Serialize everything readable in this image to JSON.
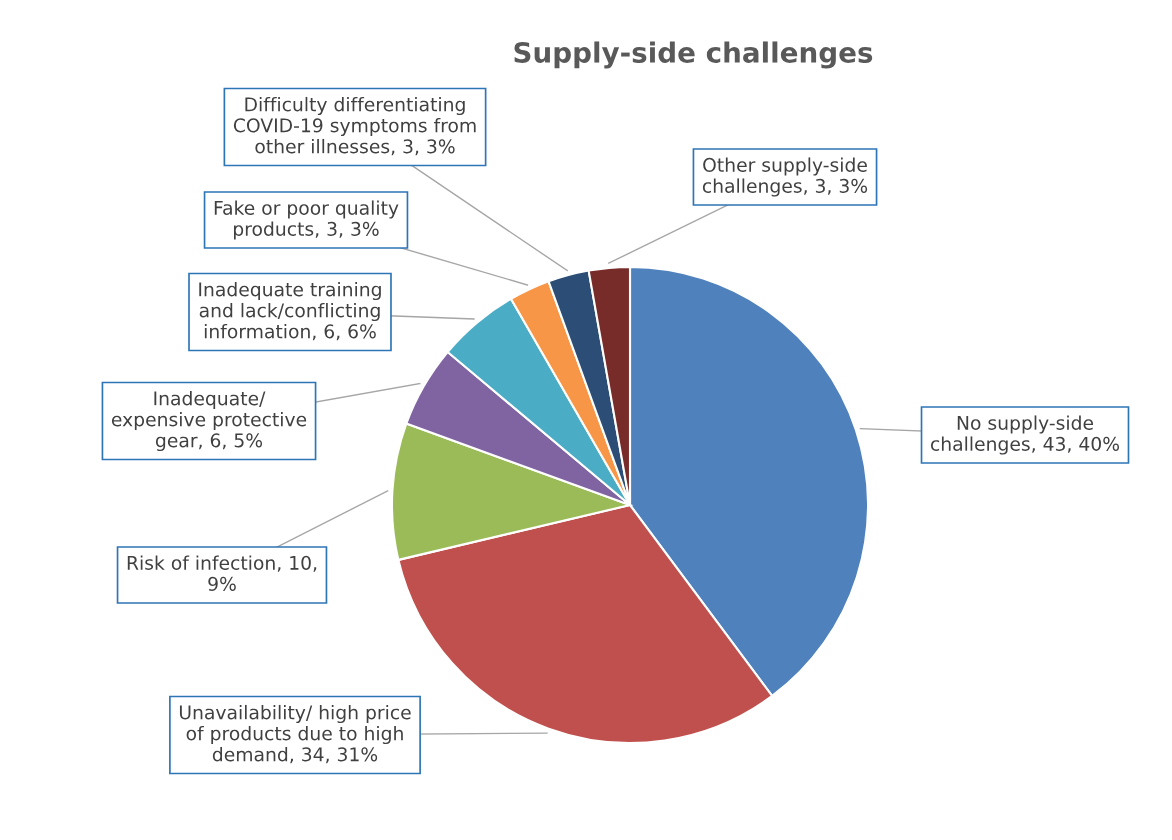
{
  "chart_data": {
    "type": "pie",
    "title": "Supply-side challenges",
    "categories": [
      "No supply-side challenges",
      "Unavailability/ high price of products due to high demand",
      "Risk of infection",
      "Inadequate/ expensive protective gear",
      "Inadequate training and lack/conflicting information",
      "Fake or poor quality products",
      "Difficulty differentiating COVID-19 symptoms from other illnesses",
      "Other supply-side challenges"
    ],
    "values": [
      43,
      34,
      10,
      6,
      6,
      3,
      3,
      3
    ],
    "value_labels": [
      "43, 40%",
      "34, 31%",
      "10, 9%",
      "6, 5%",
      "6, 6%",
      "3, 3%",
      "3, 3%",
      "3, 3%"
    ],
    "colors": [
      "#4f81bd",
      "#c0504d",
      "#9bbb59",
      "#8064a2",
      "#4bacc6",
      "#f79646",
      "#2c4d75",
      "#772c2a"
    ],
    "legend": false
  }
}
